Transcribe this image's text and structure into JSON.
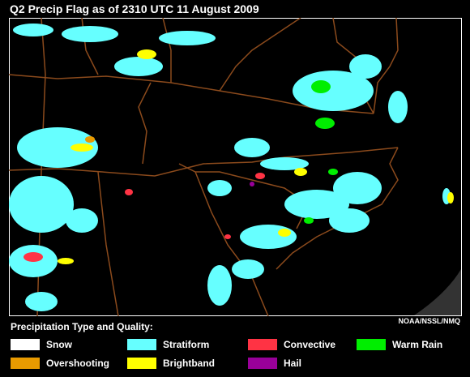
{
  "header": {
    "title": "Q2 Precip Flag as of 2310 UTC 11 August 2009"
  },
  "credit": "NOAA/NSSL/NMQ",
  "legend": {
    "title": "Precipitation Type and Quality:",
    "items": [
      {
        "name": "Snow",
        "color": "#ffffff"
      },
      {
        "name": "Stratiform",
        "color": "#66ffff"
      },
      {
        "name": "Convective",
        "color": "#ff3344"
      },
      {
        "name": "Warm Rain",
        "color": "#00ee00"
      },
      {
        "name": "Overshooting",
        "color": "#e89a00"
      },
      {
        "name": "Brightband",
        "color": "#ffff00"
      },
      {
        "name": "Hail",
        "color": "#990099"
      }
    ]
  }
}
